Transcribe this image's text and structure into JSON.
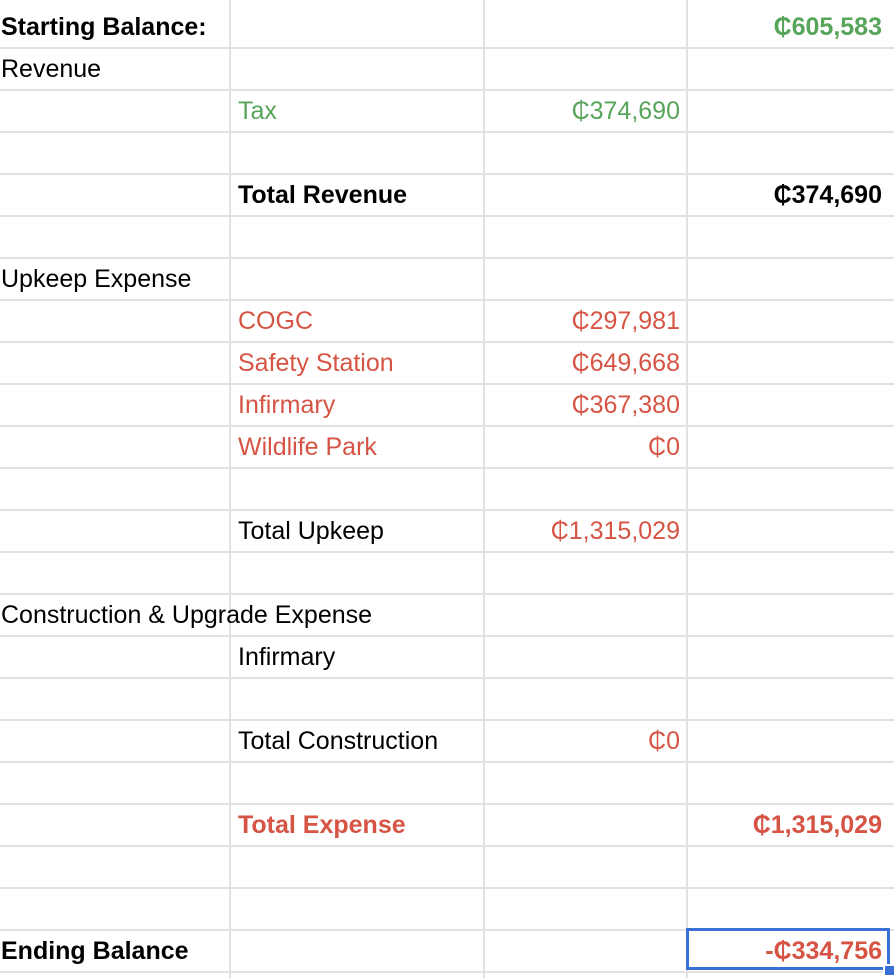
{
  "currency_symbol": "₵",
  "colors": {
    "income_green": "#57a55a",
    "expense_red": "#d65444",
    "selection_blue": "#3a6fd8",
    "gridline": "#e2e2e2"
  },
  "rows": [
    {
      "label": "Starting Balance:",
      "label_style": "bold",
      "col3": "₵605,583",
      "col3_style": "green-bold"
    },
    {
      "label": "Revenue"
    },
    {
      "item": "Tax",
      "item_style": "green",
      "col2": "₵374,690",
      "col2_style": "green"
    },
    {},
    {
      "item": "Total Revenue",
      "item_style": "bold",
      "col3": "₵374,690",
      "col3_style": "black-bold"
    },
    {},
    {
      "label": "Upkeep Expense"
    },
    {
      "item": "COGC",
      "item_style": "red",
      "col2": "₵297,981",
      "col2_style": "red"
    },
    {
      "item": "Safety Station",
      "item_style": "red",
      "col2": "₵649,668",
      "col2_style": "red"
    },
    {
      "item": "Infirmary",
      "item_style": "red",
      "col2": "₵367,380",
      "col2_style": "red"
    },
    {
      "item": "Wildlife Park",
      "item_style": "red",
      "col2": "₵0",
      "col2_style": "red"
    },
    {},
    {
      "item": "Total Upkeep",
      "col2": "₵1,315,029",
      "col2_style": "red"
    },
    {},
    {
      "label": "Construction & Upgrade Expense"
    },
    {
      "item": "Infirmary"
    },
    {},
    {
      "item": "Total Construction",
      "col2": "₵0",
      "col2_style": "red"
    },
    {},
    {
      "item": "Total Expense",
      "item_style": "red-bold",
      "col3": "₵1,315,029",
      "col3_style": "red-bold"
    },
    {},
    {},
    {
      "label": "Ending Balance",
      "label_style": "bold",
      "col3": "-₵334,756",
      "col3_style": "red-bold",
      "selected": true
    }
  ]
}
